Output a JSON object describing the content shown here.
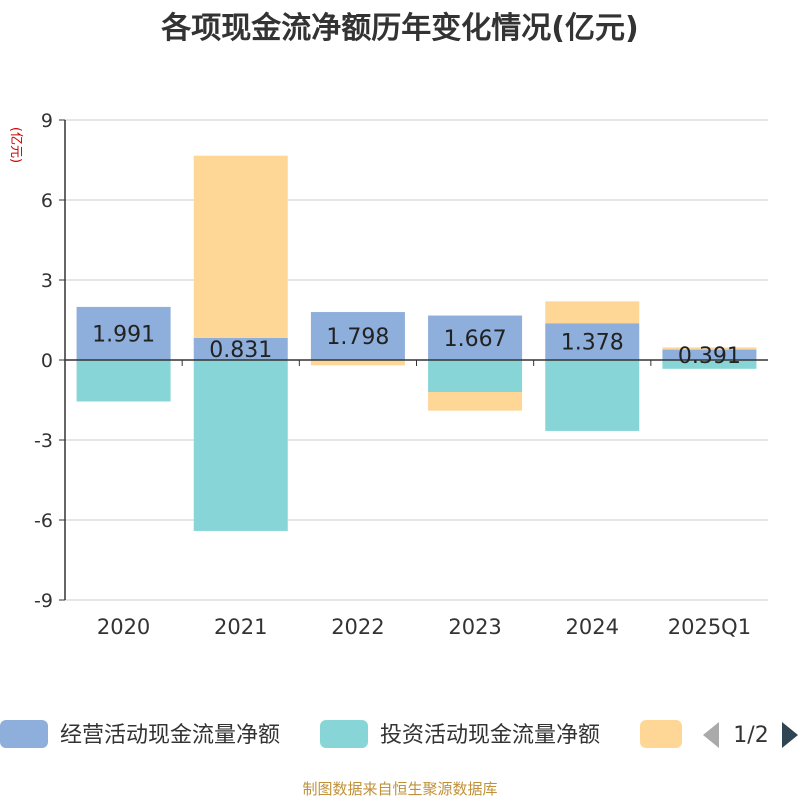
{
  "chart_data": {
    "type": "bar",
    "stacked": true,
    "title": "各项现金流净额历年变化情况(亿元)",
    "ylabel": "(亿元)",
    "ylim": [
      -9,
      9
    ],
    "yticks": [
      9,
      6,
      3,
      0,
      -3,
      -6,
      -9
    ],
    "grid": true,
    "legend_position": "bottom",
    "categories": [
      "2020",
      "2021",
      "2022",
      "2023",
      "2024",
      "2025Q1"
    ],
    "series": [
      {
        "name": "经营活动现金流量净额",
        "color": "#8eaedb",
        "values": [
          1.991,
          0.831,
          1.798,
          1.667,
          1.378,
          0.391
        ],
        "labels": [
          "1.991",
          "0.831",
          "1.798",
          "1.667",
          "1.378",
          "0.391"
        ]
      },
      {
        "name": "投资活动现金流量净额",
        "color": "#87d5d7",
        "values": [
          -1.55,
          -6.41,
          0,
          -1.2,
          -2.66,
          -0.33
        ]
      },
      {
        "name": "",
        "color": "#fed797",
        "values": [
          -0.001,
          6.83,
          -0.2,
          -0.7,
          0.82,
          0.08
        ]
      }
    ]
  },
  "legend_pager": {
    "text": "1/2"
  },
  "source_note": "制图数据来自恒生聚源数据库"
}
